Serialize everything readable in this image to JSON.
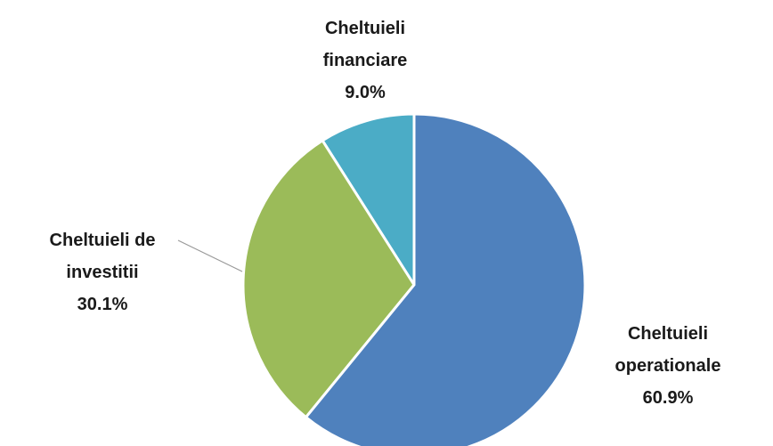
{
  "chart_data": {
    "type": "pie",
    "categories": [
      "Cheltuieli operationale",
      "Cheltuieli de investitii",
      "Cheltuieli financiare"
    ],
    "values": [
      60.9,
      30.1,
      9.0
    ],
    "value_labels": [
      "60.9%",
      "30.1%",
      "9.0%"
    ],
    "colors": [
      "#4f81bd",
      "#9bbb59",
      "#4bacc6"
    ]
  }
}
